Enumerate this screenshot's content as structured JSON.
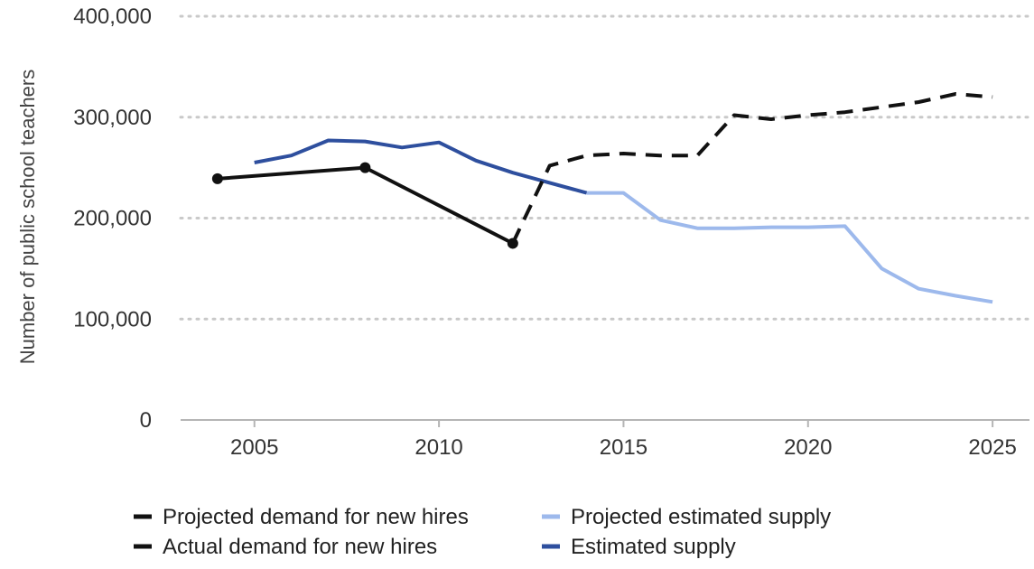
{
  "chart_data": {
    "type": "line",
    "title": "",
    "xlabel": "",
    "ylabel": "Number of public school teachers",
    "xlim": [
      2003,
      2026
    ],
    "ylim": [
      0,
      400000
    ],
    "x_ticks": [
      "2005",
      "2010",
      "2015",
      "2020",
      "2025"
    ],
    "y_ticks": [
      "0",
      "100,000",
      "200,000",
      "300,000",
      "400,000"
    ],
    "grid": "horizontal dotted",
    "legend_position": "bottom",
    "series": [
      {
        "name": "Projected demand for new hires",
        "color": "#111111",
        "dash": true,
        "markers": false,
        "x": [
          2012,
          2013,
          2014,
          2015,
          2016,
          2017,
          2018,
          2019,
          2020,
          2021,
          2022,
          2023,
          2024,
          2025
        ],
        "y": [
          175000,
          252000,
          262000,
          264000,
          262000,
          262000,
          302000,
          298000,
          302000,
          305000,
          310000,
          315000,
          323000,
          320000
        ]
      },
      {
        "name": "Actual demand for new hires",
        "color": "#111111",
        "dash": false,
        "markers": true,
        "x": [
          2004,
          2008,
          2012
        ],
        "y": [
          239000,
          250000,
          175000
        ]
      },
      {
        "name": "Projected estimated supply",
        "color": "#9db9ec",
        "dash": false,
        "markers": false,
        "x": [
          2014,
          2015,
          2016,
          2017,
          2018,
          2019,
          2020,
          2021,
          2022,
          2023,
          2024,
          2025
        ],
        "y": [
          225000,
          225000,
          198000,
          190000,
          190000,
          191000,
          191000,
          192000,
          150000,
          130000,
          123000,
          117000
        ]
      },
      {
        "name": "Estimated supply",
        "color": "#2e4f9e",
        "dash": false,
        "markers": false,
        "x": [
          2005,
          2006,
          2007,
          2008,
          2009,
          2010,
          2011,
          2012,
          2013,
          2014
        ],
        "y": [
          255000,
          262000,
          277000,
          276000,
          270000,
          275000,
          257000,
          245000,
          235000,
          225000
        ]
      }
    ]
  },
  "legend": {
    "items": [
      {
        "label": "Projected demand for new hires",
        "color": "#111111",
        "dash": true
      },
      {
        "label": "Projected estimated supply",
        "color": "#9db9ec",
        "dash": false
      },
      {
        "label": "Actual demand for new hires",
        "color": "#111111",
        "dash": false
      },
      {
        "label": "Estimated supply",
        "color": "#2e4f9e",
        "dash": false
      }
    ]
  }
}
